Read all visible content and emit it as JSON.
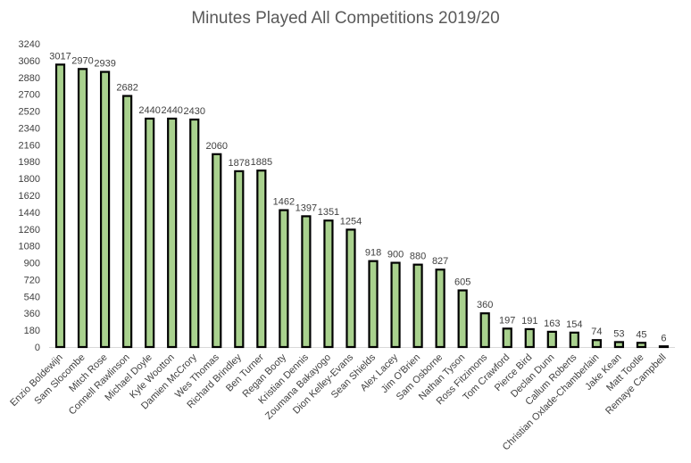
{
  "chart_data": {
    "type": "bar",
    "title": "Minutes Played All Competitions 2019/20",
    "xlabel": "",
    "ylabel": "",
    "ylim": [
      0,
      3240
    ],
    "yticks": [
      0,
      180,
      360,
      540,
      720,
      900,
      1080,
      1260,
      1440,
      1620,
      1800,
      1980,
      2160,
      2340,
      2520,
      2700,
      2880,
      3060,
      3240
    ],
    "categories": [
      "Enzio Boldewijn",
      "Sam Slocombe",
      "Mitch Rose",
      "Connell Rawlinson",
      "Michael Doyle",
      "Kyle Wootton",
      "Damien McCrory",
      "Wes Thomas",
      "Richard Brindley",
      "Ben Turner",
      "Regan Booty",
      "Kristian Dennis",
      "Zoumana Bakayogo",
      "Dion Kelley-Evans",
      "Sean Shields",
      "Alex Lacey",
      "Jim O'Brien",
      "Sam Osborne",
      "Nathan Tyson",
      "Ross Fitzimons",
      "Tom Crawford",
      "Pierce Bird",
      "Declan Dunn",
      "Callum Roberts",
      "Christian Oxlade-Chamberlain",
      "Jake Kean",
      "Matt Tootle",
      "Remaye Campbell"
    ],
    "values": [
      3017,
      2970,
      2939,
      2682,
      2440,
      2440,
      2430,
      2060,
      1878,
      1885,
      1462,
      1397,
      1351,
      1254,
      918,
      900,
      880,
      827,
      605,
      360,
      197,
      191,
      163,
      154,
      74,
      53,
      45,
      6
    ],
    "grid": false,
    "legend": "none",
    "bar_fill": "#a9d18e",
    "bar_edge": "#000000",
    "axis_color": "#d9d9d9"
  }
}
